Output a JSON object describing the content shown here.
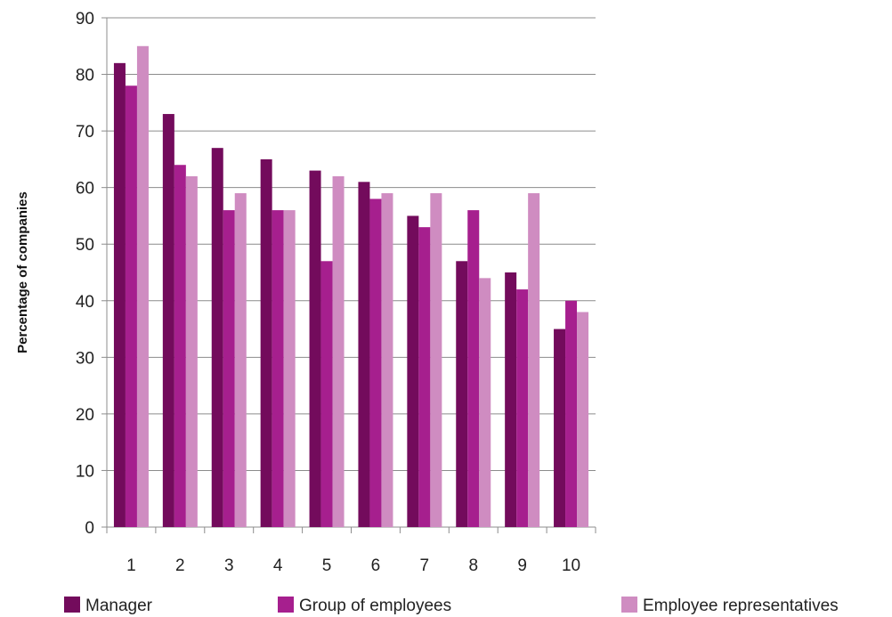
{
  "chart_data": {
    "type": "bar",
    "categories": [
      "1",
      "2",
      "3",
      "4",
      "5",
      "6",
      "7",
      "8",
      "9",
      "10"
    ],
    "series": [
      {
        "name": "Manager",
        "color": "#730B5C",
        "values": [
          82,
          73,
          67,
          65,
          63,
          61,
          55,
          47,
          45,
          35
        ]
      },
      {
        "name": "Group of employees",
        "color": "#A61F8E",
        "values": [
          78,
          64,
          56,
          56,
          47,
          58,
          53,
          56,
          42,
          40
        ]
      },
      {
        "name": "Employee representatives",
        "color": "#CF8CC1",
        "values": [
          85,
          62,
          59,
          56,
          62,
          59,
          59,
          44,
          59,
          38
        ]
      }
    ],
    "title": "",
    "xlabel": "",
    "ylabel": "Percentage of companies",
    "ylim": [
      0,
      90
    ],
    "yticks": [
      0,
      10,
      20,
      30,
      40,
      50,
      60,
      70,
      80,
      90
    ],
    "grid": true,
    "legend_position": "bottom"
  }
}
